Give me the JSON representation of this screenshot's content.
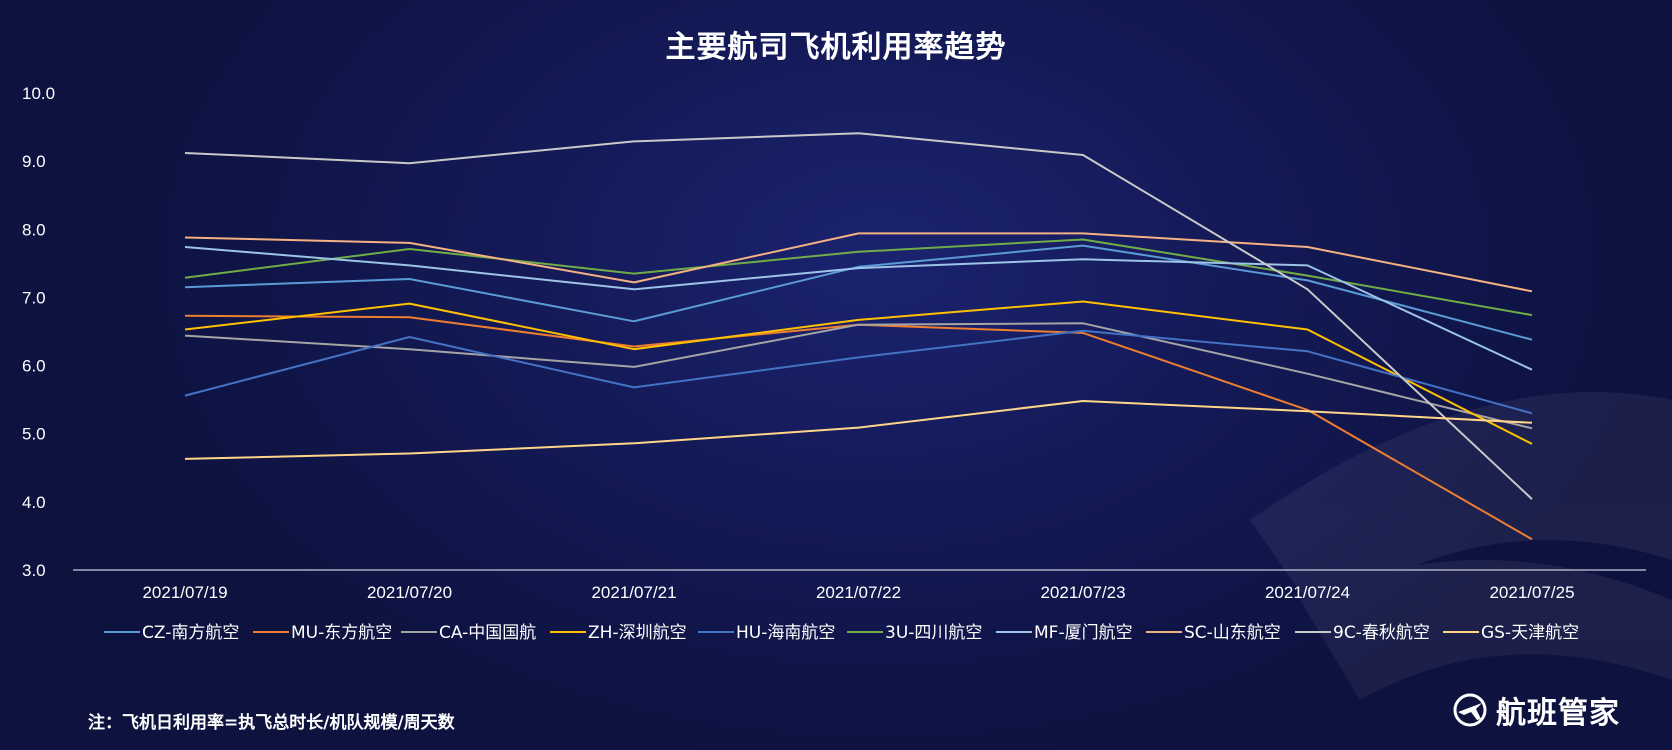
{
  "chart_data": {
    "type": "line",
    "title": "主要航司飞机利用率趋势",
    "xlabel": "",
    "ylabel": "",
    "categories": [
      "2021/07/19",
      "2021/07/20",
      "2021/07/21",
      "2021/07/22",
      "2021/07/23",
      "2021/07/24",
      "2021/07/25"
    ],
    "ylim": [
      3.0,
      10.0
    ],
    "yticks": [
      "10.0",
      "9.0",
      "8.0",
      "7.0",
      "6.0",
      "5.0",
      "4.0",
      "3.0"
    ],
    "grid": false,
    "legend_position": "bottom",
    "series": [
      {
        "name": "CZ-南方航空",
        "color": "#5b9bd5",
        "values": [
          7.15,
          7.27,
          6.65,
          7.45,
          7.76,
          7.25,
          6.38
        ]
      },
      {
        "name": "MU-东方航空",
        "color": "#ed7d31",
        "values": [
          6.73,
          6.71,
          6.28,
          6.6,
          6.48,
          5.35,
          3.45
        ]
      },
      {
        "name": "CA-中国国航",
        "color": "#a5a5a5",
        "values": [
          6.44,
          6.24,
          5.98,
          6.6,
          6.62,
          5.88,
          5.08
        ]
      },
      {
        "name": "ZH-深圳航空",
        "color": "#ffc000",
        "values": [
          6.53,
          6.91,
          6.24,
          6.67,
          6.94,
          6.53,
          4.85
        ]
      },
      {
        "name": "HU-海南航空",
        "color": "#4472c4",
        "values": [
          5.56,
          6.42,
          5.68,
          6.12,
          6.51,
          6.21,
          5.3
        ]
      },
      {
        "name": "3U-四川航空",
        "color": "#70ad47",
        "values": [
          7.29,
          7.71,
          7.35,
          7.67,
          7.85,
          7.32,
          6.74
        ]
      },
      {
        "name": "MF-厦门航空",
        "color": "#9dc3e6",
        "values": [
          7.74,
          7.47,
          7.12,
          7.43,
          7.56,
          7.47,
          5.94
        ]
      },
      {
        "name": "SC-山东航空",
        "color": "#f4b183",
        "values": [
          7.88,
          7.8,
          7.22,
          7.94,
          7.94,
          7.74,
          7.09
        ]
      },
      {
        "name": "9C-春秋航空",
        "color": "#c9c9c9",
        "values": [
          9.12,
          8.97,
          9.29,
          9.41,
          9.09,
          7.12,
          4.04
        ]
      },
      {
        "name": "GS-天津航空",
        "color": "#ffd58a",
        "values": [
          4.63,
          4.71,
          4.86,
          5.09,
          5.48,
          5.33,
          5.16
        ]
      }
    ]
  },
  "footnote": "注：飞机日利用率=执飞总时长/机队规模/周天数",
  "brand": {
    "name": "航班管家",
    "icon": "plane-globe-logo-icon"
  }
}
